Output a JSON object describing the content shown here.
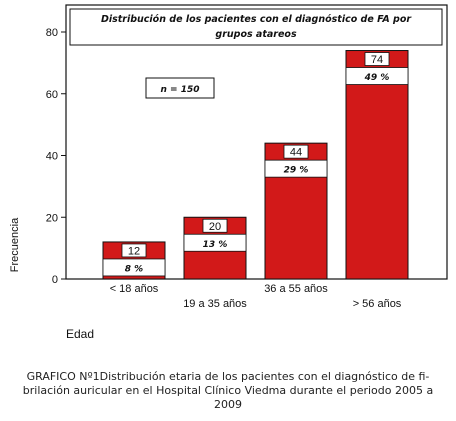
{
  "chart_data": {
    "type": "bar",
    "title": "Distribución de los pacientes con el diagnóstico de FA por grupos atareos",
    "annotation": "n = 150",
    "xlabel": "Edad",
    "ylabel": "Frecuencia",
    "categories": [
      "< 18 años",
      "19 a 35 años",
      "36 a 55 años",
      "> 56 años"
    ],
    "values": [
      12,
      20,
      44,
      74
    ],
    "percent_labels": [
      "8 %",
      "13 %",
      "29 %",
      "49 %"
    ],
    "ylim": [
      0,
      80
    ],
    "yticks": [
      0,
      20,
      40,
      60,
      80
    ],
    "colors": {
      "bar": "#d21919",
      "frame": "#111111",
      "label_box": "#ffffff"
    },
    "grid": false
  },
  "caption": {
    "line1": "GRAFICO Nº1Distribución etaria de los pacientes con el diagnóstico de fi-",
    "line2": "brilación auricular en el Hospital Clínico Viedma durante el periodo 2005 a",
    "line3": "2009"
  }
}
